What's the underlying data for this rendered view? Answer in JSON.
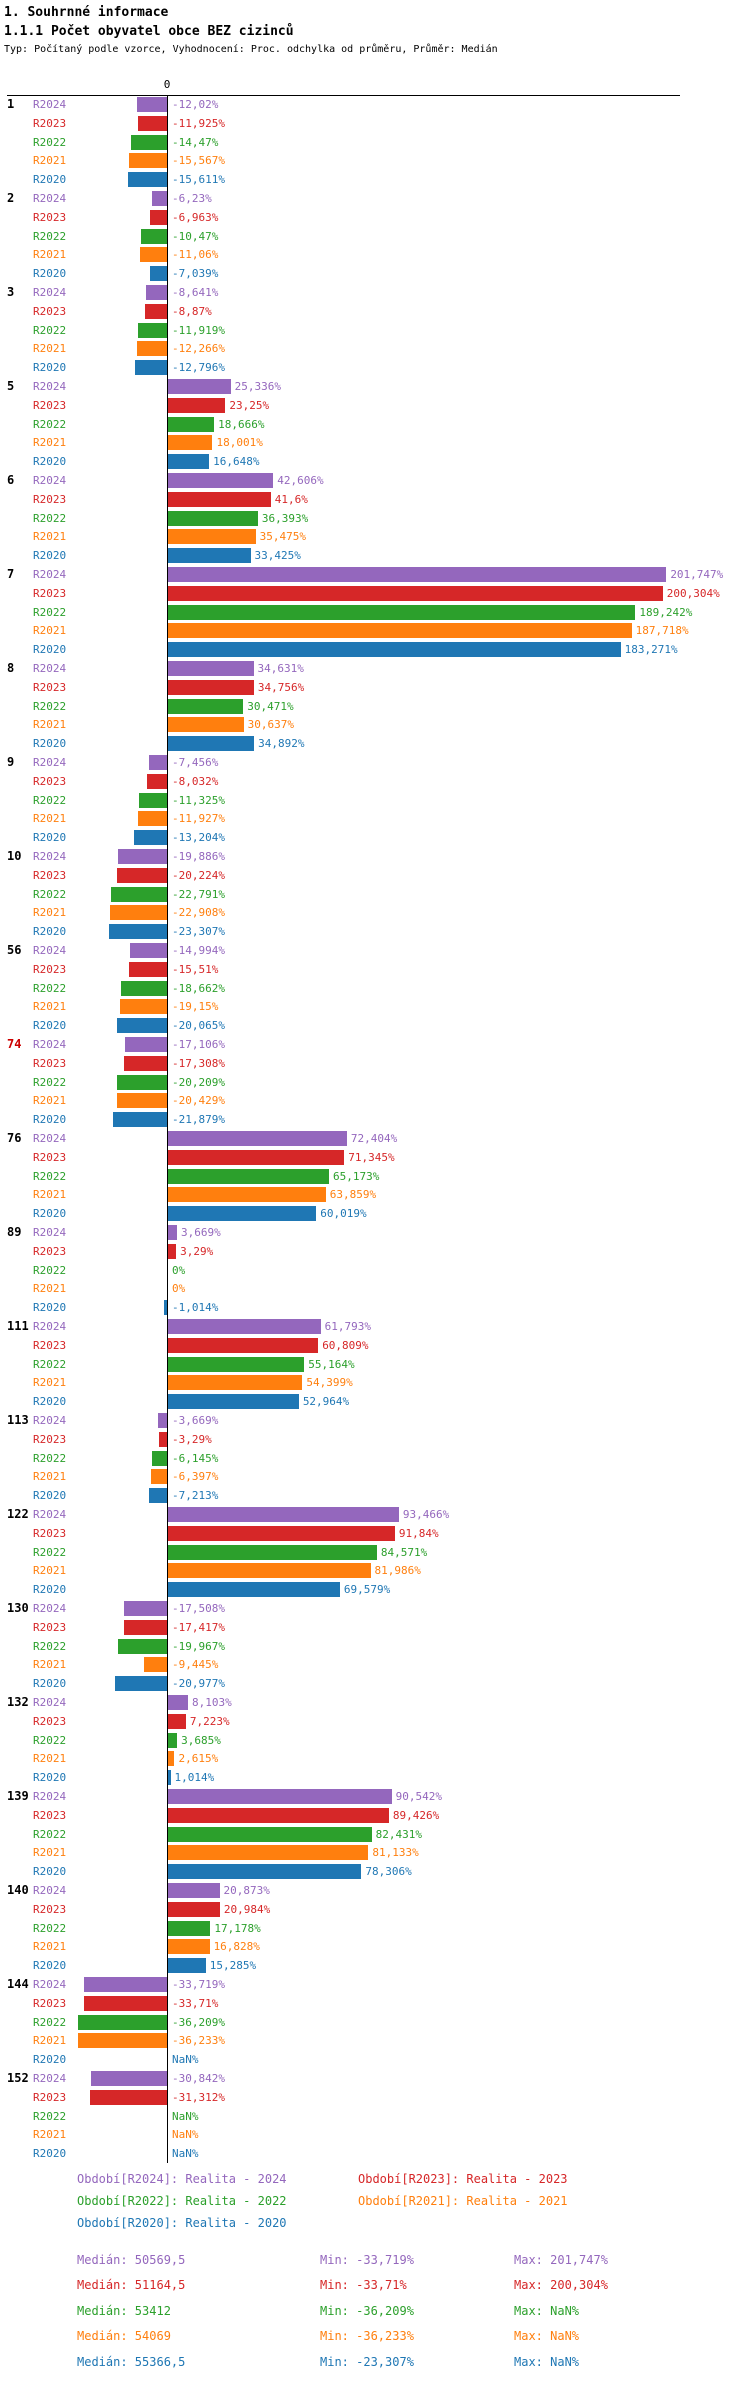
{
  "header": {
    "title": "1. Souhrnné informace",
    "subtitle": "1.1.1 Počet obyvatel obce BEZ cizinců",
    "meta": "Typ: Počítaný podle vzorce, Vyhodnocení: Proc. odchylka od průměru, Průměr: Medián"
  },
  "axis": {
    "zero_label": "0"
  },
  "chart_data": {
    "type": "bar",
    "orientation": "horizontal",
    "title": "1.1.1 Počet obyvatel obce BEZ cizinců",
    "value_unit": "%",
    "xlim": [
      -40,
      210
    ],
    "gridlines": false,
    "legend_position": "bottom",
    "series_labels": [
      "R2024",
      "R2023",
      "R2022",
      "R2021",
      "R2020"
    ],
    "series_colors": [
      "#9467bd",
      "#d62728",
      "#2ca02c",
      "#ff7f0e",
      "#1f77b4"
    ],
    "groups": [
      {
        "label": "1",
        "values": [
          -12.02,
          -11.925,
          -14.47,
          -15.567,
          -15.611
        ],
        "display": [
          "-12,02%",
          "-11,925%",
          "-14,47%",
          "-15,567%",
          "-15,611%"
        ]
      },
      {
        "label": "2",
        "values": [
          -6.23,
          -6.963,
          -10.47,
          -11.06,
          -7.039
        ],
        "display": [
          "-6,23%",
          "-6,963%",
          "-10,47%",
          "-11,06%",
          "-7,039%"
        ]
      },
      {
        "label": "3",
        "values": [
          -8.641,
          -8.87,
          -11.919,
          -12.266,
          -12.796
        ],
        "display": [
          "-8,641%",
          "-8,87%",
          "-11,919%",
          "-12,266%",
          "-12,796%"
        ]
      },
      {
        "label": "5",
        "values": [
          25.336,
          23.25,
          18.666,
          18.001,
          16.648
        ],
        "display": [
          "25,336%",
          "23,25%",
          "18,666%",
          "18,001%",
          "16,648%"
        ]
      },
      {
        "label": "6",
        "values": [
          42.606,
          41.6,
          36.393,
          35.475,
          33.425
        ],
        "display": [
          "42,606%",
          "41,6%",
          "36,393%",
          "35,475%",
          "33,425%"
        ]
      },
      {
        "label": "7",
        "values": [
          201.747,
          200.304,
          189.242,
          187.718,
          183.271
        ],
        "display": [
          "201,747%",
          "200,304%",
          "189,242%",
          "187,718%",
          "183,271%"
        ]
      },
      {
        "label": "8",
        "values": [
          34.631,
          34.756,
          30.471,
          30.637,
          34.892
        ],
        "display": [
          "34,631%",
          "34,756%",
          "30,471%",
          "30,637%",
          "34,892%"
        ]
      },
      {
        "label": "9",
        "values": [
          -7.456,
          -8.032,
          -11.325,
          -11.927,
          -13.204
        ],
        "display": [
          "-7,456%",
          "-8,032%",
          "-11,325%",
          "-11,927%",
          "-13,204%"
        ]
      },
      {
        "label": "10",
        "values": [
          -19.886,
          -20.224,
          -22.791,
          -22.908,
          -23.307
        ],
        "display": [
          "-19,886%",
          "-20,224%",
          "-22,791%",
          "-22,908%",
          "-23,307%"
        ]
      },
      {
        "label": "56",
        "values": [
          -14.994,
          -15.51,
          -18.662,
          -19.15,
          -20.065
        ],
        "display": [
          "-14,994%",
          "-15,51%",
          "-18,662%",
          "-19,15%",
          "-20,065%"
        ]
      },
      {
        "label": "74",
        "label_color": "#cc0000",
        "values": [
          -17.106,
          -17.308,
          -20.209,
          -20.429,
          -21.879
        ],
        "display": [
          "-17,106%",
          "-17,308%",
          "-20,209%",
          "-20,429%",
          "-21,879%"
        ]
      },
      {
        "label": "76",
        "values": [
          72.404,
          71.345,
          65.173,
          63.859,
          60.019
        ],
        "display": [
          "72,404%",
          "71,345%",
          "65,173%",
          "63,859%",
          "60,019%"
        ]
      },
      {
        "label": "89",
        "values": [
          3.669,
          3.29,
          0,
          0,
          -1.014
        ],
        "display": [
          "3,669%",
          "3,29%",
          "0%",
          "0%",
          "-1,014%"
        ]
      },
      {
        "label": "111",
        "values": [
          61.793,
          60.809,
          55.164,
          54.399,
          52.964
        ],
        "display": [
          "61,793%",
          "60,809%",
          "55,164%",
          "54,399%",
          "52,964%"
        ]
      },
      {
        "label": "113",
        "values": [
          -3.669,
          -3.29,
          -6.145,
          -6.397,
          -7.213
        ],
        "display": [
          "-3,669%",
          "-3,29%",
          "-6,145%",
          "-6,397%",
          "-7,213%"
        ]
      },
      {
        "label": "122",
        "values": [
          93.466,
          91.84,
          84.571,
          81.986,
          69.579
        ],
        "display": [
          "93,466%",
          "91,84%",
          "84,571%",
          "81,986%",
          "69,579%"
        ]
      },
      {
        "label": "130",
        "values": [
          -17.508,
          -17.417,
          -19.967,
          -9.445,
          -20.977
        ],
        "display": [
          "-17,508%",
          "-17,417%",
          "-19,967%",
          "-9,445%",
          "-20,977%"
        ]
      },
      {
        "label": "132",
        "values": [
          8.103,
          7.223,
          3.685,
          2.615,
          1.014
        ],
        "display": [
          "8,103%",
          "7,223%",
          "3,685%",
          "2,615%",
          "1,014%"
        ]
      },
      {
        "label": "139",
        "values": [
          90.542,
          89.426,
          82.431,
          81.133,
          78.306
        ],
        "display": [
          "90,542%",
          "89,426%",
          "82,431%",
          "81,133%",
          "78,306%"
        ]
      },
      {
        "label": "140",
        "values": [
          20.873,
          20.984,
          17.178,
          16.828,
          15.285
        ],
        "display": [
          "20,873%",
          "20,984%",
          "17,178%",
          "16,828%",
          "15,285%"
        ]
      },
      {
        "label": "144",
        "values": [
          -33.719,
          -33.71,
          -36.209,
          -36.233,
          null
        ],
        "display": [
          "-33,719%",
          "-33,71%",
          "-36,209%",
          "-36,233%",
          "NaN%"
        ]
      },
      {
        "label": "152",
        "values": [
          -30.842,
          -31.312,
          null,
          null,
          null
        ],
        "display": [
          "-30,842%",
          "-31,312%",
          "NaN%",
          "NaN%",
          "NaN%"
        ]
      }
    ]
  },
  "legend": {
    "items": [
      {
        "label": "Období[R2024]: Realita - 2024",
        "color": "#9467bd",
        "row": 0,
        "col": 0
      },
      {
        "label": "Období[R2023]: Realita - 2023",
        "color": "#d62728",
        "row": 0,
        "col": 1
      },
      {
        "label": "Období[R2022]: Realita - 2022",
        "color": "#2ca02c",
        "row": 1,
        "col": 0
      },
      {
        "label": "Období[R2021]: Realita - 2021",
        "color": "#ff7f0e",
        "row": 1,
        "col": 1
      },
      {
        "label": "Období[R2020]: Realita - 2020",
        "color": "#1f77b4",
        "row": 2,
        "col": 0
      }
    ]
  },
  "stats": {
    "median_label": "Medián",
    "min_label": "Min",
    "max_label": "Max",
    "rows": [
      {
        "color": "#9467bd",
        "median": "50569,5",
        "min": "-33,719%",
        "max": "201,747%"
      },
      {
        "color": "#d62728",
        "median": "51164,5",
        "min": "-33,71%",
        "max": "200,304%"
      },
      {
        "color": "#2ca02c",
        "median": "53412",
        "min": "-36,209%",
        "max": "NaN%"
      },
      {
        "color": "#ff7f0e",
        "median": "54069",
        "min": "-36,233%",
        "max": "NaN%"
      },
      {
        "color": "#1f77b4",
        "median": "55366,5",
        "min": "-23,307%",
        "max": "NaN%"
      }
    ]
  }
}
